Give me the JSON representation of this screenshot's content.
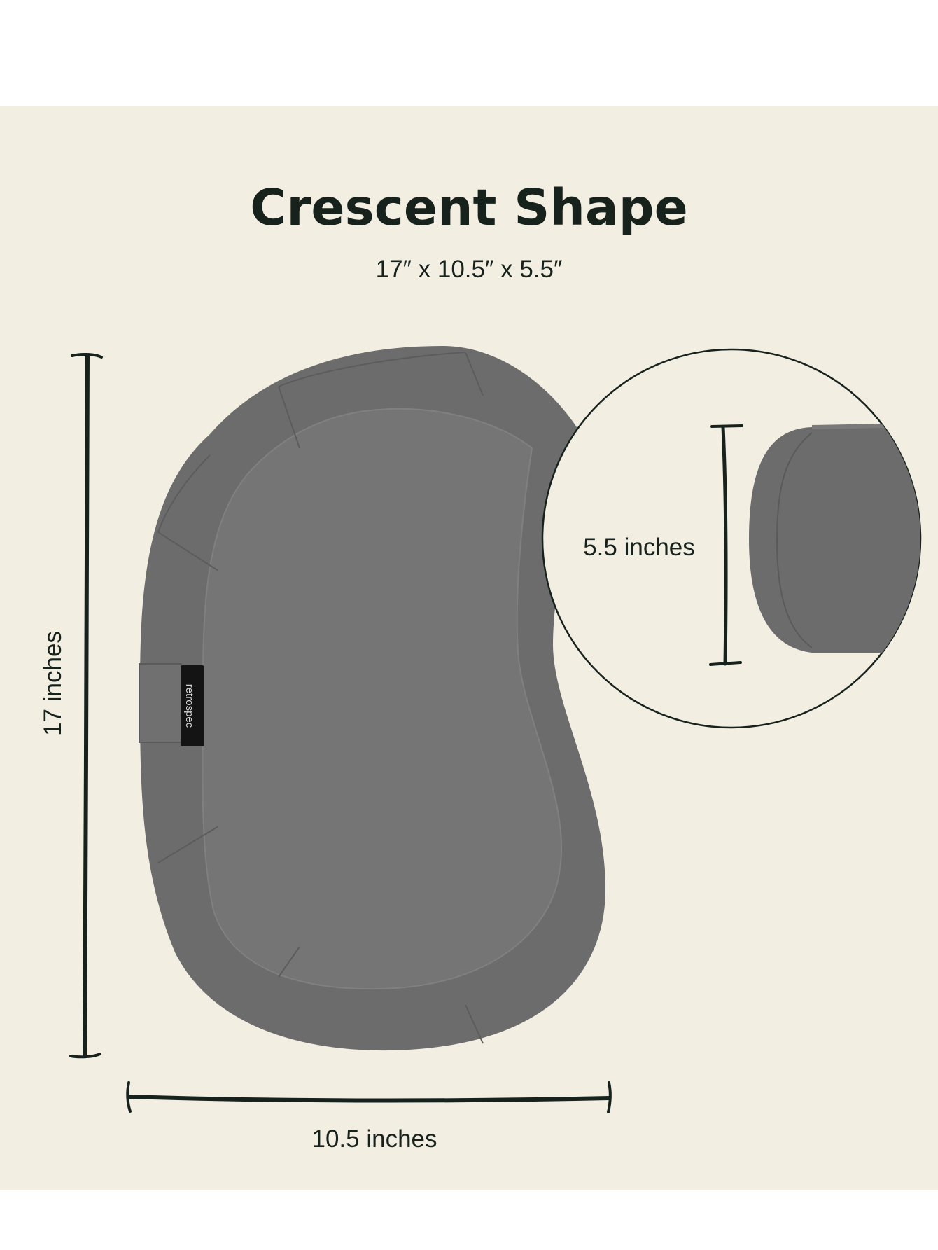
{
  "title": "Crescent Shape",
  "dimensions_text": "17″ x 10.5″ x 5.5″",
  "measurements": {
    "height_label": "17 inches",
    "width_label": "10.5 inches",
    "depth_label": "5.5 inches"
  },
  "product": {
    "brand_tag": "retrospec",
    "color": "#6c6c6c"
  },
  "colors": {
    "background": "#f2eee2",
    "text": "#17221d"
  }
}
